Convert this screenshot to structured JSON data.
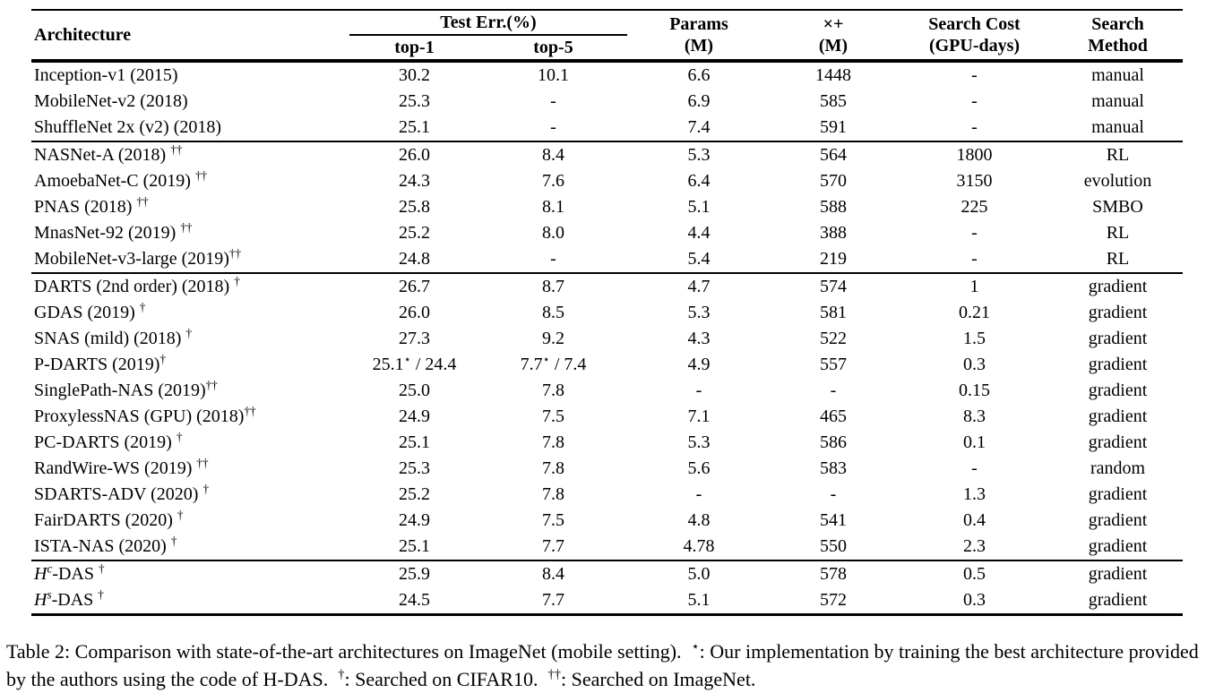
{
  "page": {
    "background": "#ffffff",
    "text_color": "#000000"
  },
  "table": {
    "header": {
      "architecture": "Architecture",
      "test_err": "Test Err.(%)",
      "top1": "top-1",
      "top5": "top-5",
      "params": [
        "Params",
        "(M)"
      ],
      "macs": [
        "×+",
        "(M)"
      ],
      "search_cost": [
        "Search Cost",
        "(GPU-days)"
      ],
      "search_method": [
        "Search",
        "Method"
      ]
    },
    "groups": [
      {
        "rows": [
          {
            "arch": [
              {
                "t": "Inception-v1 (2015)"
              }
            ],
            "top1": [
              {
                "t": "30.2"
              }
            ],
            "top5": [
              {
                "t": "10.1"
              }
            ],
            "params": [
              {
                "t": "6.6"
              }
            ],
            "macs": [
              {
                "t": "1448"
              }
            ],
            "cost": [
              {
                "t": "-"
              }
            ],
            "method": [
              {
                "t": "manual"
              }
            ]
          },
          {
            "arch": [
              {
                "t": "MobileNet-v2 (2018)"
              }
            ],
            "top1": [
              {
                "t": "25.3"
              }
            ],
            "top5": [
              {
                "t": "-"
              }
            ],
            "params": [
              {
                "t": "6.9"
              }
            ],
            "macs": [
              {
                "t": "585"
              }
            ],
            "cost": [
              {
                "t": "-"
              }
            ],
            "method": [
              {
                "t": "manual"
              }
            ]
          },
          {
            "arch": [
              {
                "t": "ShuffleNet 2x (v2) (2018)"
              }
            ],
            "top1": [
              {
                "t": "25.1"
              }
            ],
            "top5": [
              {
                "t": "-"
              }
            ],
            "params": [
              {
                "t": "7.4"
              }
            ],
            "macs": [
              {
                "t": "591"
              }
            ],
            "cost": [
              {
                "t": "-"
              }
            ],
            "method": [
              {
                "t": "manual"
              }
            ]
          }
        ]
      },
      {
        "rows": [
          {
            "arch": [
              {
                "t": "NASNet-A (2018) "
              },
              {
                "t": "††",
                "s": "sup"
              }
            ],
            "top1": [
              {
                "t": "26.0"
              }
            ],
            "top5": [
              {
                "t": "8.4"
              }
            ],
            "params": [
              {
                "t": "5.3"
              }
            ],
            "macs": [
              {
                "t": "564"
              }
            ],
            "cost": [
              {
                "t": "1800"
              }
            ],
            "method": [
              {
                "t": "RL"
              }
            ]
          },
          {
            "arch": [
              {
                "t": "AmoebaNet-C (2019) "
              },
              {
                "t": "††",
                "s": "sup"
              }
            ],
            "top1": [
              {
                "t": "24.3"
              }
            ],
            "top5": [
              {
                "t": "7.6"
              }
            ],
            "params": [
              {
                "t": "6.4"
              }
            ],
            "macs": [
              {
                "t": "570"
              }
            ],
            "cost": [
              {
                "t": "3150"
              }
            ],
            "method": [
              {
                "t": "evolution"
              }
            ]
          },
          {
            "arch": [
              {
                "t": "PNAS (2018) "
              },
              {
                "t": "††",
                "s": "sup"
              }
            ],
            "top1": [
              {
                "t": "25.8"
              }
            ],
            "top5": [
              {
                "t": "8.1"
              }
            ],
            "params": [
              {
                "t": "5.1"
              }
            ],
            "macs": [
              {
                "t": "588"
              }
            ],
            "cost": [
              {
                "t": "225"
              }
            ],
            "method": [
              {
                "t": "SMBO"
              }
            ]
          },
          {
            "arch": [
              {
                "t": "MnasNet-92 (2019) "
              },
              {
                "t": "††",
                "s": "sup"
              }
            ],
            "top1": [
              {
                "t": "25.2"
              }
            ],
            "top5": [
              {
                "t": "8.0"
              }
            ],
            "params": [
              {
                "t": "4.4"
              }
            ],
            "macs": [
              {
                "t": "388"
              }
            ],
            "cost": [
              {
                "t": "-"
              }
            ],
            "method": [
              {
                "t": "RL"
              }
            ]
          },
          {
            "arch": [
              {
                "t": "MobileNet-v3-large (2019)"
              },
              {
                "t": "††",
                "s": "sup"
              }
            ],
            "top1": [
              {
                "t": "24.8"
              }
            ],
            "top5": [
              {
                "t": "-"
              }
            ],
            "params": [
              {
                "t": "5.4"
              }
            ],
            "macs": [
              {
                "t": "219"
              }
            ],
            "cost": [
              {
                "t": "-"
              }
            ],
            "method": [
              {
                "t": "RL"
              }
            ]
          }
        ]
      },
      {
        "rows": [
          {
            "arch": [
              {
                "t": "DARTS (2nd order) (2018) "
              },
              {
                "t": "†",
                "s": "sup"
              }
            ],
            "top1": [
              {
                "t": "26.7"
              }
            ],
            "top5": [
              {
                "t": "8.7"
              }
            ],
            "params": [
              {
                "t": "4.7"
              }
            ],
            "macs": [
              {
                "t": "574"
              }
            ],
            "cost": [
              {
                "t": "1"
              }
            ],
            "method": [
              {
                "t": "gradient"
              }
            ]
          },
          {
            "arch": [
              {
                "t": "GDAS (2019) "
              },
              {
                "t": "†",
                "s": "sup"
              }
            ],
            "top1": [
              {
                "t": "26.0"
              }
            ],
            "top5": [
              {
                "t": "8.5"
              }
            ],
            "params": [
              {
                "t": "5.3"
              }
            ],
            "macs": [
              {
                "t": "581"
              }
            ],
            "cost": [
              {
                "t": "0.21"
              }
            ],
            "method": [
              {
                "t": "gradient"
              }
            ]
          },
          {
            "arch": [
              {
                "t": "SNAS (mild) (2018) "
              },
              {
                "t": "†",
                "s": "sup"
              }
            ],
            "top1": [
              {
                "t": "27.3"
              }
            ],
            "top5": [
              {
                "t": "9.2"
              }
            ],
            "params": [
              {
                "t": "4.3"
              }
            ],
            "macs": [
              {
                "t": "522"
              }
            ],
            "cost": [
              {
                "t": "1.5"
              }
            ],
            "method": [
              {
                "t": "gradient"
              }
            ]
          },
          {
            "arch": [
              {
                "t": "P-DARTS (2019)"
              },
              {
                "t": "†",
                "s": "sup"
              }
            ],
            "top1": [
              {
                "t": "25.1"
              },
              {
                "t": "⋆",
                "s": "sup"
              },
              {
                "t": " / 24.4"
              }
            ],
            "top5": [
              {
                "t": "7.7"
              },
              {
                "t": "⋆",
                "s": "sup"
              },
              {
                "t": " / 7.4"
              }
            ],
            "params": [
              {
                "t": "4.9"
              }
            ],
            "macs": [
              {
                "t": "557"
              }
            ],
            "cost": [
              {
                "t": "0.3"
              }
            ],
            "method": [
              {
                "t": "gradient"
              }
            ]
          },
          {
            "arch": [
              {
                "t": "SinglePath-NAS (2019)"
              },
              {
                "t": "††",
                "s": "sup"
              }
            ],
            "top1": [
              {
                "t": "25.0"
              }
            ],
            "top5": [
              {
                "t": "7.8"
              }
            ],
            "params": [
              {
                "t": "-"
              }
            ],
            "macs": [
              {
                "t": "-"
              }
            ],
            "cost": [
              {
                "t": "0.15"
              }
            ],
            "method": [
              {
                "t": "gradient"
              }
            ]
          },
          {
            "arch": [
              {
                "t": "ProxylessNAS (GPU) (2018)"
              },
              {
                "t": "††",
                "s": "sup"
              }
            ],
            "top1": [
              {
                "t": "24.9"
              }
            ],
            "top5": [
              {
                "t": "7.5"
              }
            ],
            "params": [
              {
                "t": "7.1"
              }
            ],
            "macs": [
              {
                "t": "465"
              }
            ],
            "cost": [
              {
                "t": "8.3"
              }
            ],
            "method": [
              {
                "t": "gradient"
              }
            ]
          },
          {
            "arch": [
              {
                "t": "PC-DARTS (2019) "
              },
              {
                "t": "†",
                "s": "sup"
              }
            ],
            "top1": [
              {
                "t": "25.1"
              }
            ],
            "top5": [
              {
                "t": "7.8"
              }
            ],
            "params": [
              {
                "t": "5.3"
              }
            ],
            "macs": [
              {
                "t": "586"
              }
            ],
            "cost": [
              {
                "t": "0.1"
              }
            ],
            "method": [
              {
                "t": "gradient"
              }
            ]
          },
          {
            "arch": [
              {
                "t": "RandWire-WS (2019) "
              },
              {
                "t": "††",
                "s": "sup"
              }
            ],
            "top1": [
              {
                "t": "25.3"
              }
            ],
            "top5": [
              {
                "t": "7.8"
              }
            ],
            "params": [
              {
                "t": "5.6"
              }
            ],
            "macs": [
              {
                "t": "583"
              }
            ],
            "cost": [
              {
                "t": "-"
              }
            ],
            "method": [
              {
                "t": "random"
              }
            ]
          },
          {
            "arch": [
              {
                "t": "SDARTS-ADV (2020) "
              },
              {
                "t": "†",
                "s": "sup"
              }
            ],
            "top1": [
              {
                "t": "25.2"
              }
            ],
            "top5": [
              {
                "t": "7.8"
              }
            ],
            "params": [
              {
                "t": "-"
              }
            ],
            "macs": [
              {
                "t": "-"
              }
            ],
            "cost": [
              {
                "t": "1.3"
              }
            ],
            "method": [
              {
                "t": "gradient"
              }
            ]
          },
          {
            "arch": [
              {
                "t": "FairDARTS (2020) "
              },
              {
                "t": "†",
                "s": "sup"
              }
            ],
            "top1": [
              {
                "t": "24.9"
              }
            ],
            "top5": [
              {
                "t": "7.5"
              }
            ],
            "params": [
              {
                "t": "4.8"
              }
            ],
            "macs": [
              {
                "t": "541"
              }
            ],
            "cost": [
              {
                "t": "0.4"
              }
            ],
            "method": [
              {
                "t": "gradient"
              }
            ]
          },
          {
            "arch": [
              {
                "t": "ISTA-NAS (2020) "
              },
              {
                "t": "†",
                "s": "sup"
              }
            ],
            "top1": [
              {
                "t": "25.1"
              }
            ],
            "top5": [
              {
                "t": "7.7"
              }
            ],
            "params": [
              {
                "t": "4.78"
              }
            ],
            "macs": [
              {
                "t": "550"
              }
            ],
            "cost": [
              {
                "t": "2.3"
              }
            ],
            "method": [
              {
                "t": "gradient"
              }
            ]
          }
        ]
      },
      {
        "rows": [
          {
            "arch": [
              {
                "t": "H",
                "s": "it"
              },
              {
                "t": "c",
                "s": "itsup"
              },
              {
                "t": "-DAS "
              },
              {
                "t": "†",
                "s": "sup"
              }
            ],
            "top1": [
              {
                "t": "25.9"
              }
            ],
            "top5": [
              {
                "t": "8.4"
              }
            ],
            "params": [
              {
                "t": "5.0"
              }
            ],
            "macs": [
              {
                "t": "578"
              }
            ],
            "cost": [
              {
                "t": "0.5"
              }
            ],
            "method": [
              {
                "t": "gradient"
              }
            ]
          },
          {
            "arch": [
              {
                "t": "H",
                "s": "it"
              },
              {
                "t": "s",
                "s": "itsup"
              },
              {
                "t": "-DAS "
              },
              {
                "t": "†",
                "s": "sup"
              }
            ],
            "top1": [
              {
                "t": "24.5"
              }
            ],
            "top5": [
              {
                "t": "7.7"
              }
            ],
            "params": [
              {
                "t": "5.1"
              }
            ],
            "macs": [
              {
                "t": "572"
              }
            ],
            "cost": [
              {
                "t": "0.3"
              }
            ],
            "method": [
              {
                "t": "gradient"
              }
            ]
          }
        ]
      }
    ],
    "caption_segments": [
      {
        "t": "Table 2: Comparison with state-of-the-art architectures on ImageNet (mobile setting).  "
      },
      {
        "t": "⋆",
        "s": "sup"
      },
      {
        "t": ": Our implementation by training the best architecture provided by the authors using the code of H-DAS.  "
      },
      {
        "t": "†",
        "s": "sup"
      },
      {
        "t": ": Searched on CIFAR10.  "
      },
      {
        "t": "††",
        "s": "sup"
      },
      {
        "t": ": Searched on ImageNet."
      }
    ]
  }
}
